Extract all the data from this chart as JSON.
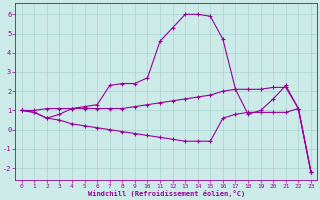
{
  "xlabel": "Windchill (Refroidissement éolien,°C)",
  "bg_color": "#cceae8",
  "line_color": "#990099",
  "grid_color": "#aad4d0",
  "xlim": [
    -0.5,
    23.5
  ],
  "ylim": [
    -2.6,
    6.6
  ],
  "xticks": [
    0,
    1,
    2,
    3,
    4,
    5,
    6,
    7,
    8,
    9,
    10,
    11,
    12,
    13,
    14,
    15,
    16,
    17,
    18,
    19,
    20,
    21,
    22,
    23
  ],
  "yticks": [
    -2,
    -1,
    0,
    1,
    2,
    3,
    4,
    5,
    6
  ],
  "curve1_x": [
    0,
    1,
    2,
    3,
    4,
    5,
    6,
    7,
    8,
    9,
    10,
    11,
    12,
    13,
    14,
    15,
    16,
    17,
    18,
    19,
    20,
    21,
    22,
    23
  ],
  "curve1_y": [
    1.0,
    0.9,
    0.6,
    0.8,
    1.1,
    1.2,
    1.3,
    2.3,
    2.4,
    2.4,
    2.7,
    4.6,
    5.3,
    6.0,
    6.0,
    5.9,
    4.7,
    2.1,
    0.8,
    1.0,
    1.6,
    2.3,
    1.1,
    -2.2
  ],
  "curve2_x": [
    0,
    1,
    2,
    3,
    4,
    5,
    6,
    7,
    8,
    9,
    10,
    11,
    12,
    13,
    14,
    15,
    16,
    17,
    18,
    19,
    20,
    21,
    22,
    23
  ],
  "curve2_y": [
    1.0,
    1.0,
    1.1,
    1.1,
    1.1,
    1.1,
    1.1,
    1.1,
    1.1,
    1.2,
    1.3,
    1.4,
    1.5,
    1.6,
    1.7,
    1.8,
    2.0,
    2.1,
    2.1,
    2.1,
    2.2,
    2.2,
    1.1,
    -2.2
  ],
  "curve3_x": [
    0,
    1,
    2,
    3,
    4,
    5,
    6,
    7,
    8,
    9,
    10,
    11,
    12,
    13,
    14,
    15,
    16,
    17,
    18,
    19,
    20,
    21,
    22,
    23
  ],
  "curve3_y": [
    1.0,
    0.9,
    0.6,
    0.5,
    0.3,
    0.2,
    0.1,
    0.0,
    -0.1,
    -0.2,
    -0.3,
    -0.4,
    -0.5,
    -0.6,
    -0.6,
    -0.6,
    0.6,
    0.8,
    0.9,
    0.9,
    0.9,
    0.9,
    1.1,
    -2.2
  ],
  "curve4_x": [
    0,
    22,
    23
  ],
  "curve4_y": [
    1.0,
    1.0,
    -2.2
  ]
}
